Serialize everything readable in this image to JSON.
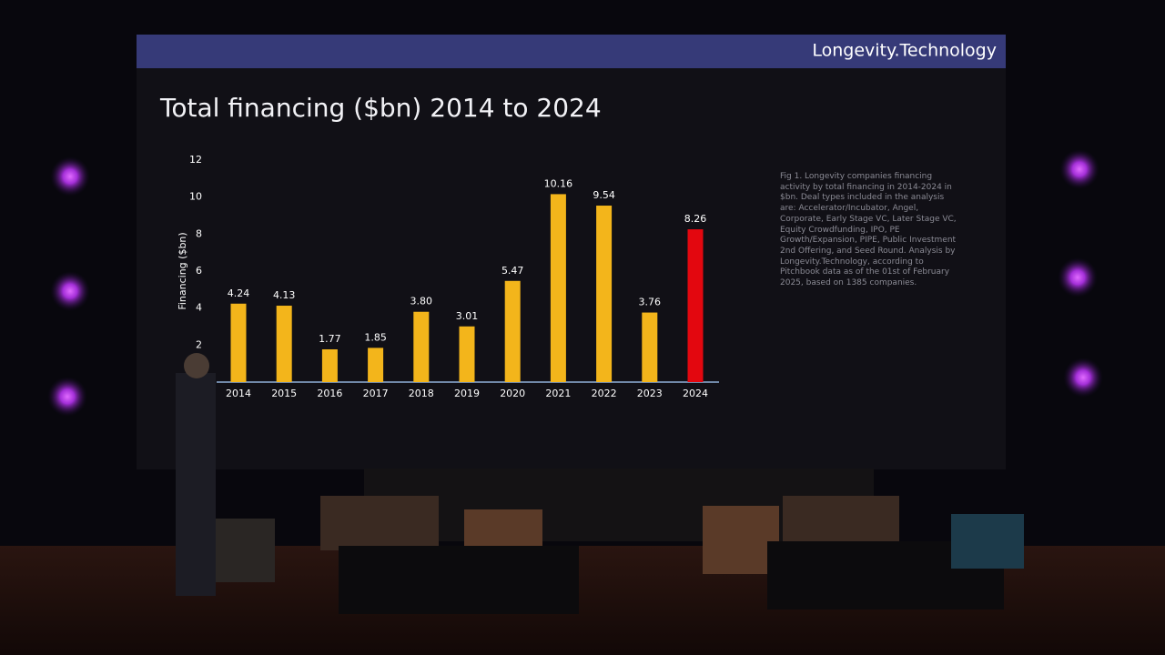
{
  "brand": "Longevity.Technology",
  "chart_data": {
    "type": "bar",
    "title": "Total financing ($bn) 2014 to 2024",
    "y_label": "Financing ($bn)",
    "categories": [
      "2014",
      "2015",
      "2016",
      "2017",
      "2018",
      "2019",
      "2020",
      "2021",
      "2022",
      "2023",
      "2024"
    ],
    "values": [
      4.24,
      4.13,
      1.77,
      1.85,
      3.8,
      3.01,
      5.47,
      10.16,
      9.54,
      3.76,
      8.26
    ],
    "value_labels": [
      "4.24",
      "4.13",
      "1.77",
      "1.85",
      "3.80",
      "3.01",
      "5.47",
      "10.16",
      "9.54",
      "3.76",
      "8.26"
    ],
    "colors": [
      "#f3b51b",
      "#f3b51b",
      "#f3b51b",
      "#f3b51b",
      "#f3b51b",
      "#f3b51b",
      "#f3b51b",
      "#f3b51b",
      "#f3b51b",
      "#f3b51b",
      "#e3070f"
    ],
    "ylim": [
      0,
      12
    ],
    "yticks": [
      2,
      4,
      6,
      8,
      10,
      12
    ],
    "grid": false,
    "note": "Fig 1. Longevity companies financing activity by total financing in 2014-2024 in $bn. Deal types included in the analysis are: Accelerator/Incubator, Angel, Corporate, Early Stage VC, Later Stage VC, Equity Crowdfunding, IPO, PE Growth/Expansion, PIPE, Public Investment 2nd Offering, and Seed Round. Analysis by Longevity.Technology, according to Pitchbook data as of the 01st of February 2025, based on 1385 companies."
  }
}
